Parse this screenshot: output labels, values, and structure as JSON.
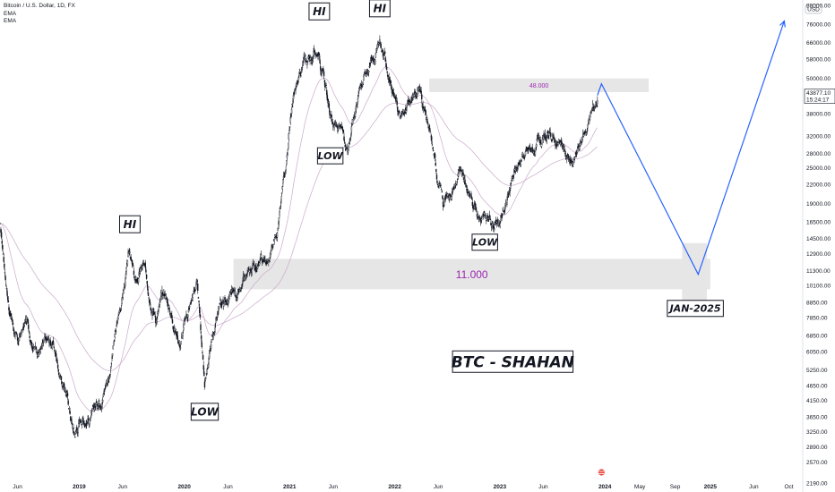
{
  "legend": {
    "symbol": "Bitcoin / U.S. Dollar, 1D, FX",
    "ema1": "EMA",
    "ema2": "EMA"
  },
  "price_scale": {
    "currency": "USD",
    "last_price": "43877.10",
    "countdown": "15:24:17"
  },
  "chart_data": {
    "type": "candlestick",
    "y_scale": "log",
    "ylim": [
      2190,
      88000
    ],
    "xlim": [
      "2018-04-01",
      "2025-11-15"
    ],
    "y_ticks": [
      2190,
      2570,
      2890,
      3250,
      3650,
      4150,
      4650,
      5250,
      6050,
      6850,
      7850,
      8850,
      10100,
      11300,
      12900,
      14500,
      16500,
      19000,
      22000,
      25000,
      28000,
      32000,
      38000,
      50000,
      58000,
      66000,
      76000,
      88000
    ],
    "y_tick_labels": [
      "2190.00",
      "2570.00",
      "2890.00",
      "3250.00",
      "3650.00",
      "4150.00",
      "4650.00",
      "5250.00",
      "6050.00",
      "6850.00",
      "7850.00",
      "8850.00",
      "10100.00",
      "11300.00",
      "12900.00",
      "14500.00",
      "16500.00",
      "19000.00",
      "22000.00",
      "25000.00",
      "28000.00",
      "32000.00",
      "38000.00",
      "50000.00",
      "58000.00",
      "66000.00",
      "76000.00",
      "88000.00"
    ],
    "x_ticks": [
      {
        "label": "Jun",
        "date": "2018-06-01"
      },
      {
        "label": "2019",
        "date": "2019-01-01"
      },
      {
        "label": "Jun",
        "date": "2019-06-01"
      },
      {
        "label": "2020",
        "date": "2020-01-01"
      },
      {
        "label": "Jun",
        "date": "2020-06-01"
      },
      {
        "label": "2021",
        "date": "2021-01-01"
      },
      {
        "label": "Jun",
        "date": "2021-06-01"
      },
      {
        "label": "2022",
        "date": "2022-01-01"
      },
      {
        "label": "Jun",
        "date": "2022-06-01"
      },
      {
        "label": "2023",
        "date": "2023-01-01"
      },
      {
        "label": "Jun",
        "date": "2023-06-01"
      },
      {
        "label": "2024",
        "date": "2024-01-01"
      },
      {
        "label": "May",
        "date": "2024-05-01"
      },
      {
        "label": "Sep",
        "date": "2024-09-01"
      },
      {
        "label": "2025",
        "date": "2025-01-01"
      },
      {
        "label": "Jun",
        "date": "2025-06-01"
      },
      {
        "label": "Oct",
        "date": "2025-10-01"
      }
    ],
    "price_path": [
      [
        "2018-04-01",
        16000
      ],
      [
        "2018-05-01",
        8900
      ],
      [
        "2018-06-01",
        6400
      ],
      [
        "2018-07-01",
        7600
      ],
      [
        "2018-08-01",
        6300
      ],
      [
        "2018-10-01",
        6400
      ],
      [
        "2018-11-20",
        4300
      ],
      [
        "2018-12-15",
        3200
      ],
      [
        "2019-01-10",
        3700
      ],
      [
        "2019-02-15",
        3650
      ],
      [
        "2019-04-15",
        5200
      ],
      [
        "2019-06-26",
        13000
      ],
      [
        "2019-07-15",
        10000
      ],
      [
        "2019-08-10",
        11600
      ],
      [
        "2019-09-25",
        8200
      ],
      [
        "2019-10-26",
        9400
      ],
      [
        "2019-12-18",
        6600
      ],
      [
        "2020-02-13",
        10400
      ],
      [
        "2020-03-12",
        4700
      ],
      [
        "2020-03-13",
        5000
      ],
      [
        "2020-05-01",
        8800
      ],
      [
        "2020-07-15",
        9200
      ],
      [
        "2020-09-01",
        11900
      ],
      [
        "2020-10-20",
        12000
      ],
      [
        "2020-12-01",
        19000
      ],
      [
        "2021-01-08",
        40000
      ],
      [
        "2021-02-20",
        56000
      ],
      [
        "2021-04-14",
        63000
      ],
      [
        "2021-05-20",
        38000
      ],
      [
        "2021-07-20",
        30000
      ],
      [
        "2021-09-05",
        50000
      ],
      [
        "2021-11-10",
        67000
      ],
      [
        "2022-01-22",
        36000
      ],
      [
        "2022-03-28",
        47000
      ],
      [
        "2022-06-18",
        19000
      ],
      [
        "2022-08-15",
        24000
      ],
      [
        "2022-11-10",
        16500
      ],
      [
        "2022-12-31",
        16600
      ],
      [
        "2023-03-20",
        28000
      ],
      [
        "2023-07-14",
        31000
      ],
      [
        "2023-09-11",
        25500
      ],
      [
        "2023-10-31",
        34500
      ],
      [
        "2023-12-06",
        43877.1
      ]
    ],
    "projection": [
      {
        "date": "2023-12-20",
        "value": 48000
      },
      {
        "date": "2024-11-20",
        "value": 11000
      },
      {
        "date": "2025-09-15",
        "value": 78000
      }
    ],
    "zones": [
      {
        "label": "48.000",
        "x_from": "2022-05-01",
        "x_to": "2024-06-01",
        "y_from": 45000,
        "y_to": 50000
      },
      {
        "label": "11.000",
        "x_from": "2020-06-20",
        "x_to": "2025-01-01",
        "y_from": 9800,
        "y_to": 12400
      },
      {
        "label": "",
        "x_from": "2024-09-25",
        "x_to": "2024-12-20",
        "y_from": 8650,
        "y_to": 14000
      }
    ],
    "annotations": [
      {
        "text": "HI",
        "date": "2019-06-26",
        "value": 16200,
        "size": 12
      },
      {
        "text": "LOW",
        "date": "2020-03-12",
        "value": 3800,
        "size": 12
      },
      {
        "text": "HI",
        "date": "2021-04-14",
        "value": 84000,
        "size": 12
      },
      {
        "text": "LOW",
        "date": "2021-05-22",
        "value": 27500,
        "size": 11
      },
      {
        "text": "HI",
        "date": "2021-11-10",
        "value": 86000,
        "size": 12
      },
      {
        "text": "LOW",
        "date": "2022-11-10",
        "value": 14100,
        "size": 11
      },
      {
        "text": "JAN-2025",
        "date": "2024-11-10",
        "value": 8450,
        "size": 11
      },
      {
        "text": "BTC - SHAHAN",
        "date": "2023-02-15",
        "value": 5600,
        "size": 17
      }
    ],
    "colors": {
      "candles": "#131722",
      "projection": "#2962ff",
      "zone": "#e6e6e6",
      "zone_label": "#9c27b0",
      "ema": "#c9a9c9"
    }
  }
}
